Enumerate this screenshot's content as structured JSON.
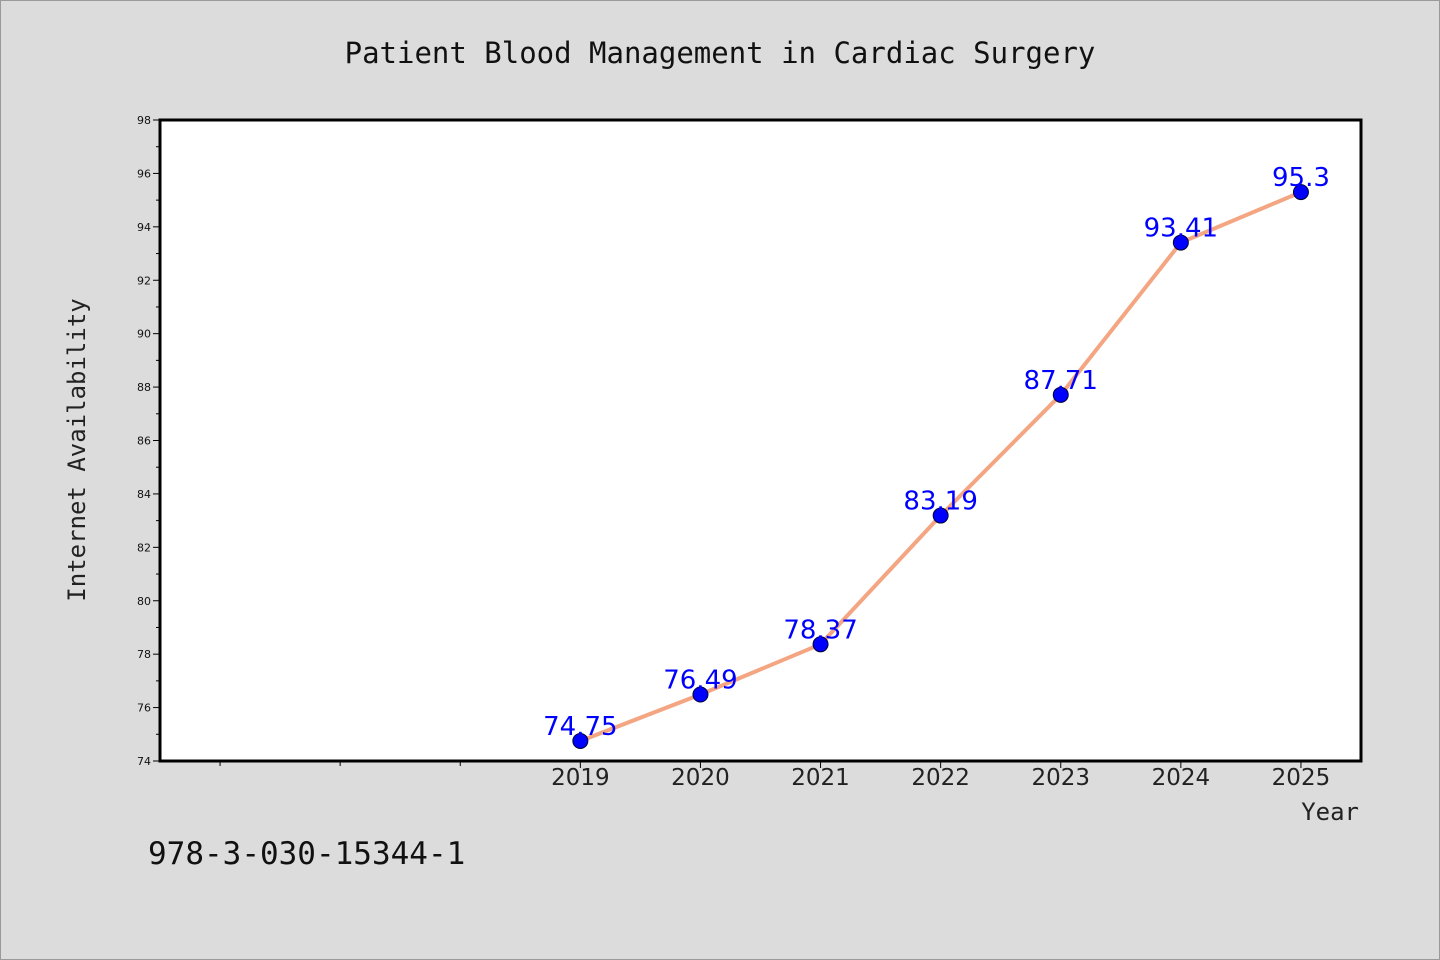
{
  "chart_data": {
    "type": "line",
    "title": "Patient Blood Management in Cardiac Surgery",
    "xlabel": "Year",
    "ylabel": "Internet Availability",
    "x": [
      "2019",
      "2020",
      "2021",
      "2022",
      "2023",
      "2024",
      "2025"
    ],
    "series": [
      {
        "values": [
          74.75,
          76.49,
          78.37,
          83.19,
          87.71,
          93.41,
          95.3
        ],
        "data_labels": [
          "74.75",
          "76.49",
          "78.37",
          "83.19",
          "87.71",
          "93.41",
          "95.3"
        ],
        "line_color": "#f4a582",
        "marker_color": "#0000ff"
      }
    ],
    "ylim": [
      74,
      98
    ],
    "yticks": [
      74,
      76,
      78,
      80,
      82,
      84,
      86,
      88,
      90,
      92,
      94,
      96,
      98
    ],
    "grid": false,
    "legend": "none"
  },
  "footer": {
    "text": "978-3-030-15344-1"
  },
  "colors": {
    "background": "#dcdcdc",
    "plot_background": "#ffffff",
    "axis": "#000000",
    "data_label": "#0000ff"
  }
}
